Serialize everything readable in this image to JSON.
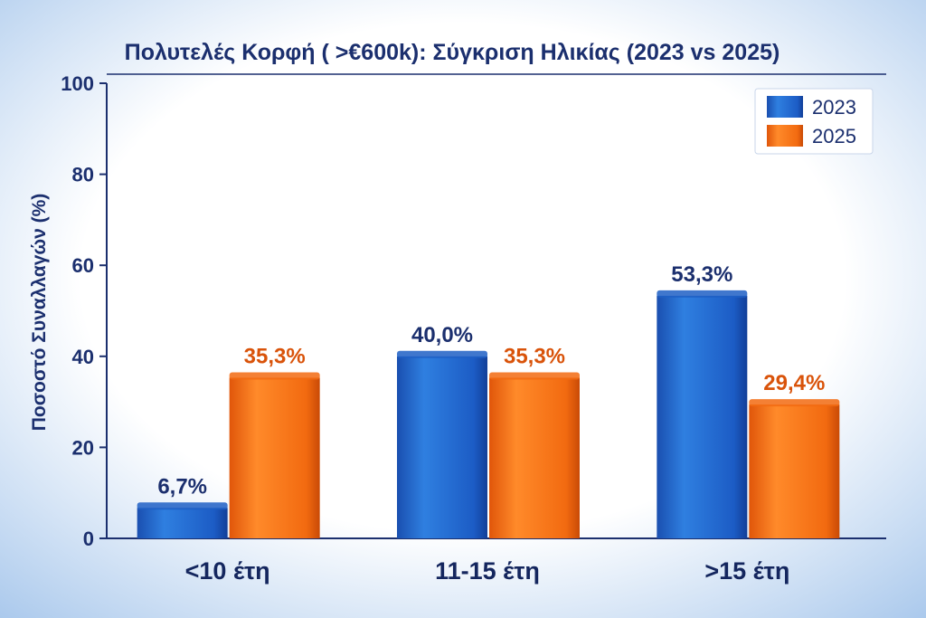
{
  "chart_data": {
    "type": "bar",
    "title": "Πολυτελές Κορφή ( >€600k): Σύγκριση Ηλικίας (2023 vs 2025)",
    "xlabel": "",
    "ylabel": "Ποσοστό Συναλλαγών (%)",
    "ylim": [
      0,
      100
    ],
    "yticks": [
      "0",
      "20",
      "40",
      "60",
      "80",
      "100"
    ],
    "categories": [
      "<10 έτη",
      "11-15 έτη",
      ">15 έτη"
    ],
    "series": [
      {
        "name": "2023",
        "values": [
          6.7,
          40.0,
          53.3
        ],
        "labels": [
          "6,7%",
          "40,0%",
          "53,3%"
        ],
        "color": "#1f5fc4",
        "label_color": "#1b2f6e"
      },
      {
        "name": "2025",
        "values": [
          35.3,
          35.3,
          29.4
        ],
        "labels": [
          "35,3%",
          "35,3%",
          "29,4%"
        ],
        "color": "#f26a10",
        "label_color": "#d9530a"
      }
    ],
    "legend": "top-right",
    "grid": false
  }
}
